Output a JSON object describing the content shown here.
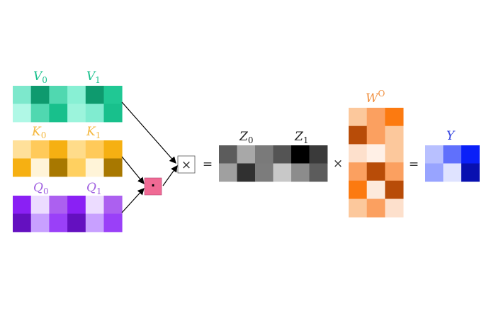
{
  "matrices": {
    "V": {
      "labels": [
        {
          "base": "V",
          "sub": "0"
        },
        {
          "base": "V",
          "sub": "1"
        }
      ],
      "label_color": "#18c08c",
      "border_color": "#1a7a5a",
      "cells": [
        [
          "#7de8cc",
          "#0e9a6e",
          "#50d8b0",
          "#88f0d4",
          "#0e9a6e",
          "#20c894"
        ],
        [
          "#b0f8e6",
          "#50d8b0",
          "#18c08c",
          "#9cf4dc",
          "#80ecd0",
          "#18c08c"
        ]
      ]
    },
    "K": {
      "labels": [
        {
          "base": "K",
          "sub": "0"
        },
        {
          "base": "K",
          "sub": "1"
        }
      ],
      "label_color": "#f4b840",
      "border_color": "#8a6a10",
      "cells": [
        [
          "#ffe09a",
          "#ffca5a",
          "#f6b012",
          "#ffdc8a",
          "#ffca5a",
          "#f6b012"
        ],
        [
          "#f6b012",
          "#fff4d8",
          "#a87800",
          "#ffd060",
          "#fff4d8",
          "#a87800"
        ]
      ]
    },
    "Q": {
      "labels": [
        {
          "base": "Q",
          "sub": "0"
        },
        {
          "base": "Q",
          "sub": "1"
        }
      ],
      "label_color": "#a060e0",
      "border_color": "#5a1a9a",
      "cells": [
        [
          "#8a20f4",
          "#ecdcff",
          "#ac60f0",
          "#8a20f4",
          "#ecdcff",
          "#ac60f0"
        ],
        [
          "#6410c0",
          "#c8a0ff",
          "#9a40f8",
          "#6410c0",
          "#c8a0ff",
          "#9a40f8"
        ]
      ]
    },
    "Z": {
      "labels": [
        {
          "base": "Z",
          "sub": "0"
        },
        {
          "base": "Z",
          "sub": "1"
        }
      ],
      "label_color": "#222222",
      "border_color": "#444444",
      "cells": [
        [
          "#5c5c5c",
          "#a8a8a8",
          "#7a7a7a",
          "#545454",
          "#000000",
          "#3a3a3a"
        ],
        [
          "#a0a0a0",
          "#303030",
          "#7c7c7c",
          "#c8c8c8",
          "#8c8c8c",
          "#5c5c5c"
        ]
      ]
    },
    "W": {
      "labels": [
        {
          "base": "W",
          "sup": "O"
        }
      ],
      "label_color": "#f09040",
      "border_color": "#a05a20",
      "cells": [
        [
          "#fcc89c",
          "#fba060",
          "#fc7a10"
        ],
        [
          "#b84c08",
          "#fba060",
          "#fcc89c"
        ],
        [
          "#fde0cc",
          "#fff0e6",
          "#fcc89c"
        ],
        [
          "#fba060",
          "#b84c08",
          "#fba060"
        ],
        [
          "#fc7a10",
          "#fdeadc",
          "#b84c08"
        ],
        [
          "#fcc89c",
          "#fba060",
          "#fde0cc"
        ]
      ]
    },
    "Y": {
      "labels": [
        {
          "base": "Y"
        }
      ],
      "label_color": "#3040e0",
      "border_color": "#4a5ab0",
      "cells": [
        [
          "#b8c0ff",
          "#6070fc",
          "#0a20f8"
        ],
        [
          "#98a4ff",
          "#dfe3ff",
          "#0810b0"
        ]
      ]
    }
  },
  "operators": {
    "times_box": "×",
    "equals_1": "=",
    "times_2": "×",
    "equals_2": "=",
    "dot_box": "·"
  },
  "colors": {
    "dot_box_fill": "#f06a94",
    "arrow": "#000000"
  }
}
